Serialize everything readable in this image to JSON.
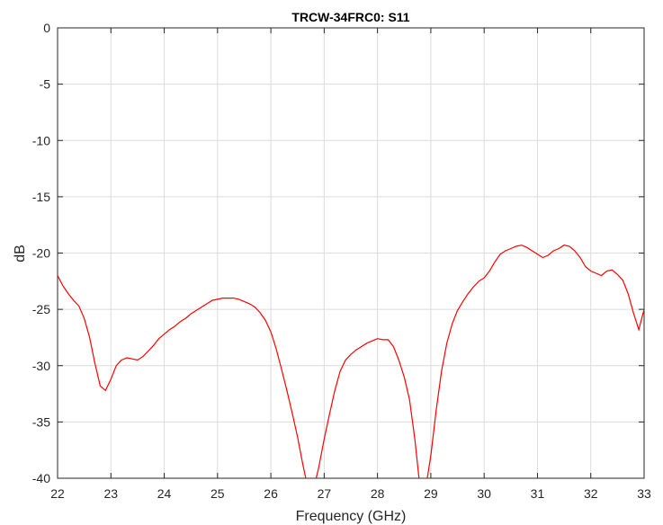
{
  "chart_data": {
    "type": "line",
    "title": "TRCW-34FRC0: S11",
    "xlabel": "Frequency (GHz)",
    "ylabel": "dB",
    "xlim": [
      22,
      33
    ],
    "ylim": [
      -40,
      0
    ],
    "xticks": [
      "22",
      "23",
      "24",
      "25",
      "26",
      "27",
      "28",
      "29",
      "30",
      "31",
      "32",
      "33"
    ],
    "yticks": [
      "0",
      "-5",
      "-10",
      "-15",
      "-20",
      "-25",
      "-30",
      "-35",
      "-40"
    ],
    "grid": true,
    "colors": {
      "line": "#ff0000",
      "grid": "#dcdcdc",
      "axis": "#262626"
    },
    "series": [
      {
        "x": [
          22.0,
          22.1,
          22.2,
          22.3,
          22.4,
          22.5,
          22.6,
          22.7,
          22.8,
          22.9,
          23.0,
          23.1,
          23.2,
          23.3,
          23.4,
          23.5,
          23.6,
          23.7,
          23.8,
          23.9,
          24.0,
          24.1,
          24.2,
          24.3,
          24.4,
          24.5,
          24.6,
          24.7,
          24.8,
          24.9,
          25.0,
          25.1,
          25.2,
          25.3,
          25.4,
          25.5,
          25.6,
          25.7,
          25.8,
          25.9,
          26.0,
          26.1,
          26.2,
          26.3,
          26.4,
          26.5,
          26.6,
          26.7,
          26.8,
          26.9,
          27.0,
          27.1,
          27.2,
          27.3,
          27.4,
          27.5,
          27.6,
          27.7,
          27.8,
          27.9,
          28.0,
          28.1,
          28.2,
          28.3,
          28.4,
          28.5,
          28.6,
          28.7,
          28.8,
          28.9,
          29.0,
          29.1,
          29.2,
          29.3,
          29.4,
          29.5,
          29.6,
          29.7,
          29.8,
          29.9,
          30.0,
          30.1,
          30.2,
          30.3,
          30.4,
          30.5,
          30.6,
          30.7,
          30.8,
          30.9,
          31.0,
          31.1,
          31.2,
          31.3,
          31.4,
          31.5,
          31.6,
          31.7,
          31.8,
          31.9,
          32.0,
          32.1,
          32.2,
          32.3,
          32.4,
          32.5,
          32.6,
          32.7,
          32.8,
          32.9,
          33.0
        ],
        "y": [
          -22.0,
          -22.9,
          -23.6,
          -24.2,
          -24.7,
          -25.8,
          -27.5,
          -29.8,
          -31.8,
          -32.2,
          -31.2,
          -30.0,
          -29.5,
          -29.3,
          -29.4,
          -29.5,
          -29.2,
          -28.7,
          -28.2,
          -27.6,
          -27.2,
          -26.8,
          -26.5,
          -26.1,
          -25.8,
          -25.4,
          -25.1,
          -24.8,
          -24.5,
          -24.2,
          -24.1,
          -24.0,
          -24.0,
          -24.0,
          -24.1,
          -24.3,
          -24.5,
          -24.8,
          -25.3,
          -26.0,
          -27.0,
          -28.5,
          -30.3,
          -32.2,
          -34.2,
          -36.3,
          -38.8,
          -41.0,
          -41.0,
          -39.0,
          -36.5,
          -34.3,
          -32.2,
          -30.5,
          -29.5,
          -29.0,
          -28.6,
          -28.3,
          -28.0,
          -27.8,
          -27.6,
          -27.7,
          -27.7,
          -28.3,
          -29.5,
          -31.0,
          -33.0,
          -36.5,
          -41.0,
          -41.0,
          -38.0,
          -34.0,
          -30.5,
          -28.0,
          -26.3,
          -25.1,
          -24.3,
          -23.6,
          -23.0,
          -22.5,
          -22.2,
          -21.6,
          -20.8,
          -20.1,
          -19.8,
          -19.6,
          -19.4,
          -19.3,
          -19.5,
          -19.8,
          -20.1,
          -20.4,
          -20.2,
          -19.8,
          -19.6,
          -19.3,
          -19.4,
          -19.8,
          -20.4,
          -21.2,
          -21.6,
          -21.8,
          -22.0,
          -21.6,
          -21.5,
          -21.9,
          -22.4,
          -23.6,
          -25.3,
          -26.8,
          -25.0
        ]
      }
    ]
  }
}
